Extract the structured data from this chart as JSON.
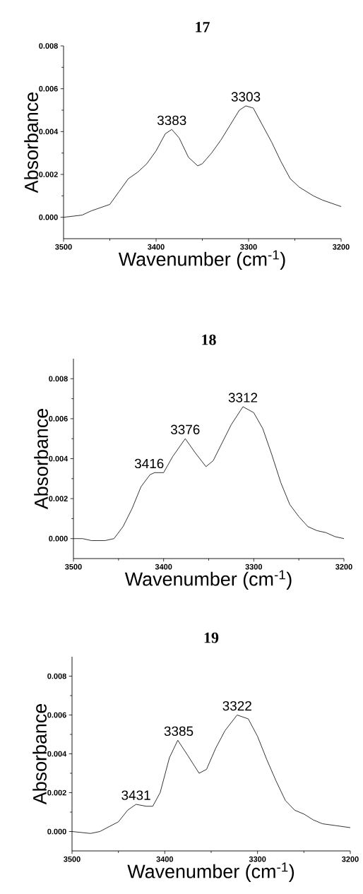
{
  "chart_data": [
    {
      "type": "line",
      "title": "17",
      "xlabel": "Wavenumber (cm$^{-1}$)",
      "ylabel": "Absorbance",
      "marker": "none",
      "x": [
        3500,
        3480,
        3470,
        3450,
        3440,
        3430,
        3420,
        3410,
        3400,
        3390,
        3383,
        3375,
        3365,
        3355,
        3350,
        3340,
        3330,
        3320,
        3310,
        3303,
        3295,
        3285,
        3275,
        3265,
        3255,
        3245,
        3230,
        3220,
        3200
      ],
      "series": [
        {
          "color": "#000000",
          "values": [
            0,
            0.0001,
            0.0003,
            0.0006,
            0.0012,
            0.0018,
            0.0021,
            0.0025,
            0.0031,
            0.0039,
            0.0041,
            0.0037,
            0.0028,
            0.0024,
            0.0025,
            0.003,
            0.0036,
            0.0043,
            0.005,
            0.0052,
            0.0051,
            0.0043,
            0.0035,
            0.0026,
            0.0018,
            0.0014,
            0.001,
            0.0008,
            0.0005
          ]
        }
      ],
      "xlim": [
        3500,
        3200
      ],
      "ylim": [
        -0.001,
        0.008
      ],
      "xticks": [
        3500,
        3400,
        3300,
        3200
      ],
      "yticks": [
        {
          "value": 0,
          "label": "0.000"
        },
        {
          "value": 0.002,
          "label": "0.002"
        },
        {
          "value": 0.004,
          "label": "0.004"
        },
        {
          "value": 0.006,
          "label": "0.006"
        },
        {
          "value": 0.008,
          "label": "0.008"
        }
      ],
      "annotations": [
        {
          "text": "3383",
          "x": 3383,
          "y": 0.0041
        },
        {
          "text": "3303",
          "x": 3303,
          "y": 0.0052
        }
      ]
    },
    {
      "type": "line",
      "title": "18",
      "xlabel": "Wavenumber (cm$^{-1}$)",
      "ylabel": "Absorbance",
      "marker": "none",
      "x": [
        3500,
        3490,
        3480,
        3465,
        3455,
        3445,
        3435,
        3425,
        3415,
        3410,
        3400,
        3390,
        3376,
        3365,
        3353,
        3345,
        3335,
        3325,
        3312,
        3300,
        3290,
        3280,
        3270,
        3260,
        3250,
        3240,
        3230,
        3220,
        3210,
        3200
      ],
      "series": [
        {
          "color": "#000000",
          "values": [
            0,
            0,
            -0.0001,
            -0.0001,
            0,
            0.0006,
            0.0015,
            0.0026,
            0.0032,
            0.0033,
            0.0033,
            0.0041,
            0.005,
            0.0043,
            0.0036,
            0.0039,
            0.0048,
            0.0057,
            0.0066,
            0.0063,
            0.0055,
            0.0042,
            0.0028,
            0.0017,
            0.0011,
            0.0006,
            0.0004,
            0.0003,
            0.0001,
            0
          ]
        }
      ],
      "xlim": [
        3500,
        3200
      ],
      "ylim": [
        -0.001,
        0.009
      ],
      "xticks": [
        3500,
        3400,
        3300,
        3200
      ],
      "yticks": [
        {
          "value": 0,
          "label": "0.000"
        },
        {
          "value": 0.002,
          "label": "0.002"
        },
        {
          "value": 0.004,
          "label": "0.004"
        },
        {
          "value": 0.006,
          "label": "0.006"
        },
        {
          "value": 0.008,
          "label": "0.008"
        }
      ],
      "annotations": [
        {
          "text": "3416",
          "x": 3416,
          "y": 0.0033
        },
        {
          "text": "3376",
          "x": 3376,
          "y": 0.005
        },
        {
          "text": "3312",
          "x": 3312,
          "y": 0.0066
        }
      ]
    },
    {
      "type": "line",
      "title": "19",
      "xlabel": "Wavenumber (cm$^{-1}$)",
      "ylabel": "Absorbance",
      "marker": "none",
      "x": [
        3500,
        3480,
        3470,
        3450,
        3440,
        3431,
        3420,
        3413,
        3405,
        3395,
        3386,
        3375,
        3363,
        3355,
        3345,
        3335,
        3322,
        3310,
        3300,
        3290,
        3280,
        3270,
        3260,
        3250,
        3240,
        3230,
        3215,
        3200
      ],
      "series": [
        {
          "color": "#000000",
          "values": [
            0,
            -0.0001,
            0,
            0.0005,
            0.0011,
            0.0014,
            0.0013,
            0.0013,
            0.002,
            0.0038,
            0.0047,
            0.0039,
            0.003,
            0.0032,
            0.0043,
            0.0052,
            0.006,
            0.0058,
            0.0049,
            0.0037,
            0.0026,
            0.0016,
            0.0011,
            0.0009,
            0.0006,
            0.0004,
            0.0003,
            0.0002
          ]
        }
      ],
      "xlim": [
        3500,
        3200
      ],
      "ylim": [
        -0.001,
        0.009
      ],
      "xticks": [
        3500,
        3400,
        3300,
        3200
      ],
      "yticks": [
        {
          "value": 0,
          "label": "0.000"
        },
        {
          "value": 0.002,
          "label": "0.002"
        },
        {
          "value": 0.004,
          "label": "0.004"
        },
        {
          "value": 0.006,
          "label": "0.006"
        },
        {
          "value": 0.008,
          "label": "0.008"
        }
      ],
      "annotations": [
        {
          "text": "3431",
          "x": 3431,
          "y": 0.0014
        },
        {
          "text": "3385",
          "x": 3385,
          "y": 0.0047
        },
        {
          "text": "3322",
          "x": 3322,
          "y": 0.006
        }
      ]
    }
  ]
}
